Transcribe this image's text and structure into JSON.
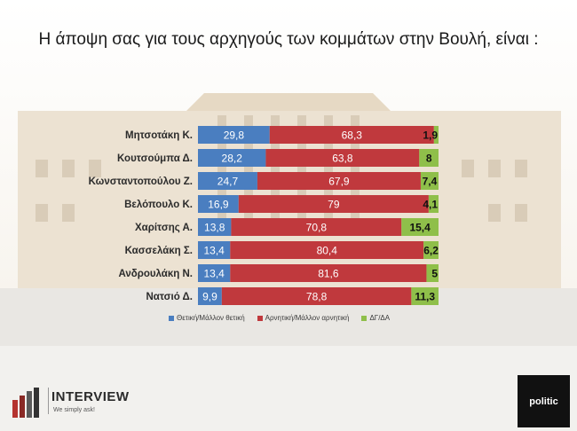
{
  "title": "Η άποψη σας για τους αρχηγούς των κομμάτων στην Βουλή,  είναι :",
  "colors": {
    "positive": "#4a7ec0",
    "negative": "#c0393d",
    "dk": "#8fbf4a"
  },
  "chart_data": {
    "type": "bar",
    "orientation": "horizontal",
    "stacked": true,
    "categories": [
      "Μητσοτάκη Κ.",
      "Κουτσούμπα Δ.",
      "Κωνσταντοπούλου Ζ.",
      "Βελόπουλο Κ.",
      "Χαρίτσης Α.",
      "Κασσελάκη Σ.",
      "Ανδρουλάκη Ν.",
      "Νατσιό Δ."
    ],
    "series": [
      {
        "name": "Θετική/Μάλλον θετική",
        "values": [
          29.8,
          28.2,
          24.7,
          16.9,
          13.8,
          13.4,
          13.4,
          9.9
        ]
      },
      {
        "name": "Αρνητική/Μάλλον αρνητική",
        "values": [
          68.3,
          63.8,
          67.9,
          79,
          70.8,
          80.4,
          81.6,
          78.8
        ]
      },
      {
        "name": "ΔΓ/ΔΑ",
        "values": [
          1.9,
          8,
          7.4,
          4.1,
          15.4,
          6.2,
          5,
          11.3
        ]
      }
    ],
    "value_labels": [
      [
        "29,8",
        "28,2",
        "24,7",
        "16,9",
        "13,8",
        "13,4",
        "13,4",
        "9,9"
      ],
      [
        "68,3",
        "63,8",
        "67,9",
        "79",
        "70,8",
        "80,4",
        "81,6",
        "78,8"
      ],
      [
        "1,9",
        "8",
        "7,4",
        "4,1",
        "15,4",
        "6,2",
        "5",
        "11,3"
      ]
    ],
    "legend_position": "bottom"
  },
  "logos": {
    "left_brand": "INTERVIEW",
    "left_tagline": "We simply ask!",
    "right_brand": "politic"
  }
}
